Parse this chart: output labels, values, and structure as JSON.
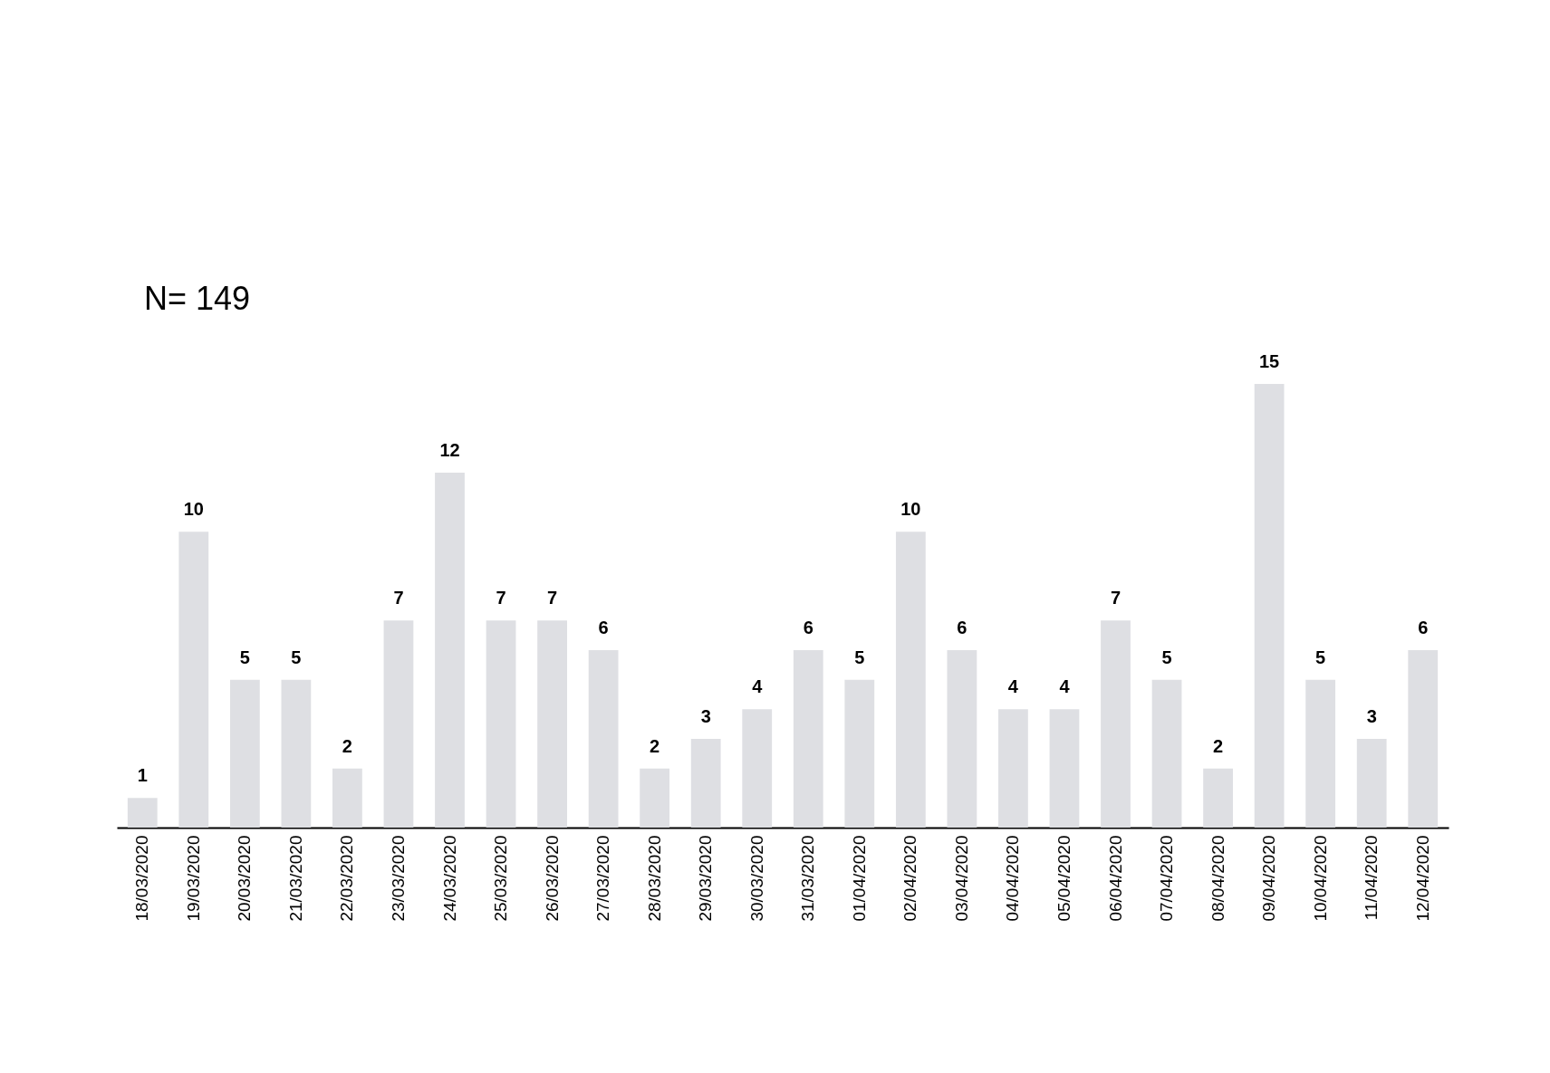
{
  "chart_data": {
    "type": "bar",
    "annotations": [
      "N= 149"
    ],
    "categories": [
      "18/03/2020",
      "19/03/2020",
      "20/03/2020",
      "21/03/2020",
      "22/03/2020",
      "23/03/2020",
      "24/03/2020",
      "25/03/2020",
      "26/03/2020",
      "27/03/2020",
      "28/03/2020",
      "29/03/2020",
      "30/03/2020",
      "31/03/2020",
      "01/04/2020",
      "02/04/2020",
      "03/04/2020",
      "04/04/2020",
      "05/04/2020",
      "06/04/2020",
      "07/04/2020",
      "08/04/2020",
      "09/04/2020",
      "10/04/2020",
      "11/04/2020",
      "12/04/2020"
    ],
    "values": [
      1,
      10,
      5,
      5,
      2,
      7,
      12,
      7,
      7,
      6,
      2,
      3,
      4,
      6,
      5,
      10,
      6,
      4,
      4,
      7,
      5,
      2,
      15,
      5,
      3,
      6
    ],
    "color": "#dedfe3",
    "data_labels": true
  }
}
